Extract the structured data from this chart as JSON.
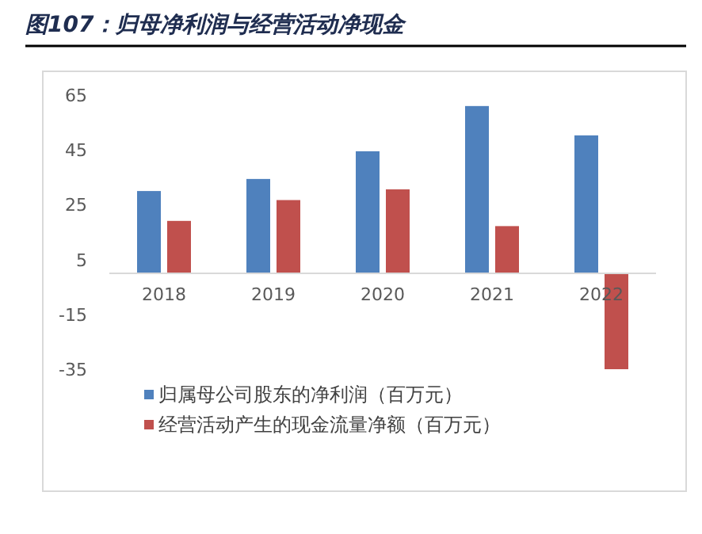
{
  "chart_data": {
    "type": "bar",
    "title": "图107：归母净利润与经营活动净现金",
    "categories": [
      "2018",
      "2019",
      "2020",
      "2021",
      "2022"
    ],
    "series": [
      {
        "name": "归属母公司股东的净利润（百万元）",
        "color": "#4f81bd",
        "values": [
          30,
          34.4,
          44.5,
          61,
          50.3
        ]
      },
      {
        "name": "经营活动产生的现金流量净额（百万元）",
        "color": "#c0504d",
        "values": [
          19.1,
          26.7,
          30.6,
          17.2,
          -35
        ]
      }
    ],
    "ylim": [
      -35,
      65
    ],
    "yticks": [
      -35,
      -15,
      5,
      25,
      45,
      65
    ],
    "grid": false,
    "legend": "bottom"
  }
}
